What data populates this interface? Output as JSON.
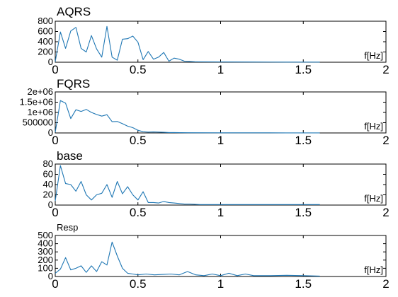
{
  "colors": {
    "series": "#1f77b4",
    "axes": "#000000",
    "background": "#ffffff"
  },
  "chart_data": [
    {
      "type": "line",
      "title": "AQRS",
      "xlabel": "f[Hz]",
      "xlim": [
        0,
        2
      ],
      "ylim": [
        0,
        800
      ],
      "xticks": [
        0,
        0.5,
        1,
        1.5,
        2
      ],
      "xticklabels": [
        "0",
        "0.5",
        "1",
        "1.5",
        "2"
      ],
      "yticks": [
        0,
        200,
        400,
        600,
        800
      ],
      "yticklabels": [
        "0",
        "200",
        "400",
        "600",
        "800"
      ],
      "grid": false,
      "series": [
        {
          "x": [
            0,
            0.0313,
            0.0625,
            0.0938,
            0.125,
            0.1563,
            0.1875,
            0.2188,
            0.25,
            0.2813,
            0.3125,
            0.3438,
            0.375,
            0.4063,
            0.4375,
            0.4688,
            0.5,
            0.5313,
            0.5625,
            0.5938,
            0.625,
            0.6563,
            0.6875,
            0.7188,
            0.75,
            0.7813,
            0.8125,
            0.8438,
            0.875,
            1.0,
            1.2,
            1.4,
            1.6
          ],
          "y": [
            10,
            590,
            270,
            610,
            680,
            270,
            200,
            520,
            260,
            100,
            700,
            100,
            40,
            450,
            460,
            510,
            390,
            50,
            210,
            60,
            100,
            190,
            20,
            80,
            60,
            20,
            15,
            10,
            8,
            5,
            4,
            3,
            3
          ]
        }
      ]
    },
    {
      "type": "line",
      "title": "FQRS",
      "xlabel": "f[Hz]",
      "xlim": [
        0,
        2
      ],
      "ylim": [
        0,
        2000000
      ],
      "xticks": [
        0,
        0.5,
        1,
        1.5,
        2
      ],
      "xticklabels": [
        "0",
        "0.5",
        "1",
        "1.5",
        "2"
      ],
      "yticks": [
        0,
        500000,
        1000000,
        1500000,
        2000000
      ],
      "yticklabels": [
        "0",
        "500000",
        "1e+06",
        "1.5e+06",
        "2e+06"
      ],
      "grid": false,
      "series": [
        {
          "x": [
            0,
            0.0313,
            0.0625,
            0.0938,
            0.125,
            0.1563,
            0.1875,
            0.2188,
            0.25,
            0.2813,
            0.3125,
            0.3438,
            0.375,
            0.4063,
            0.4375,
            0.4688,
            0.5,
            0.5313,
            0.5625,
            0.5938,
            0.625,
            0.6563,
            0.6875,
            0.7188,
            0.75,
            0.8,
            1.0,
            1.2,
            1.4,
            1.6
          ],
          "y": [
            30000,
            1580000,
            1450000,
            700000,
            1130000,
            1050000,
            1150000,
            1000000,
            900000,
            820000,
            890000,
            550000,
            560000,
            450000,
            330000,
            260000,
            130000,
            60000,
            40000,
            50000,
            40000,
            30000,
            20000,
            20000,
            15000,
            10000,
            8000,
            6000,
            5000,
            4000
          ]
        }
      ]
    },
    {
      "type": "line",
      "title": "base",
      "xlabel": "f[Hz]",
      "xlim": [
        0,
        2
      ],
      "ylim": [
        0,
        80
      ],
      "xticks": [
        0,
        0.5,
        1,
        1.5,
        2
      ],
      "xticklabels": [
        "0",
        "0.5",
        "1",
        "1.5",
        "2"
      ],
      "yticks": [
        0,
        20,
        40,
        60,
        80
      ],
      "yticklabels": [
        "0",
        "20",
        "40",
        "60",
        "80"
      ],
      "grid": false,
      "series": [
        {
          "x": [
            0,
            0.0313,
            0.0625,
            0.0938,
            0.125,
            0.1563,
            0.1875,
            0.2188,
            0.25,
            0.2813,
            0.3125,
            0.3438,
            0.375,
            0.4063,
            0.4375,
            0.4688,
            0.5,
            0.5313,
            0.5625,
            0.5938,
            0.625,
            0.6563,
            0.6875,
            0.7188,
            0.75,
            0.7813,
            0.8125,
            0.8438,
            0.875,
            1.0,
            1.2,
            1.4,
            1.6
          ],
          "y": [
            8,
            77,
            42,
            40,
            27,
            46,
            20,
            10,
            20,
            23,
            40,
            15,
            46,
            22,
            36,
            20,
            10,
            26,
            5,
            5,
            4,
            7,
            5,
            4,
            3,
            2,
            2,
            1.5,
            1,
            1,
            1,
            1,
            1
          ]
        }
      ]
    },
    {
      "type": "line",
      "title": "Resp",
      "xlabel": "f[Hz]",
      "xlim": [
        0,
        2
      ],
      "ylim": [
        0,
        500
      ],
      "xticks": [
        0,
        0.5,
        1,
        1.5,
        2
      ],
      "xticklabels": [
        "0",
        "0.5",
        "1",
        "1.5",
        "2"
      ],
      "yticks": [
        0,
        100,
        200,
        300,
        400,
        500
      ],
      "yticklabels": [
        "0",
        "100",
        "200",
        "300",
        "400",
        "500"
      ],
      "grid": false,
      "series": [
        {
          "x": [
            0,
            0.0313,
            0.0625,
            0.0938,
            0.125,
            0.1563,
            0.1875,
            0.2188,
            0.25,
            0.2813,
            0.3125,
            0.3438,
            0.375,
            0.4063,
            0.4375,
            0.4688,
            0.5,
            0.55,
            0.6,
            0.65,
            0.7,
            0.75,
            0.8,
            0.85,
            0.9,
            0.95,
            1.0,
            1.05,
            1.1,
            1.15,
            1.2,
            1.3,
            1.4,
            1.5,
            1.6
          ],
          "y": [
            40,
            90,
            230,
            80,
            100,
            130,
            50,
            130,
            60,
            180,
            140,
            420,
            250,
            100,
            40,
            30,
            20,
            30,
            20,
            25,
            30,
            20,
            60,
            20,
            10,
            30,
            10,
            40,
            10,
            30,
            10,
            10,
            15,
            10,
            5
          ]
        }
      ]
    }
  ]
}
